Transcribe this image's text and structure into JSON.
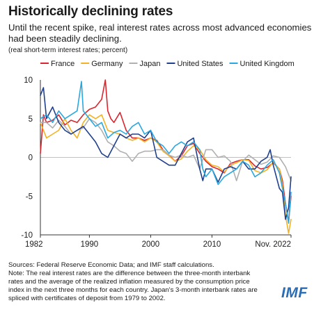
{
  "title": "Historically declining rates",
  "subtitle": "Until the recent spike, real interest rates across most advanced economies had been steadily declining.",
  "units": "(real short-term interest rates; percent)",
  "sources": [
    "Sources: Federal Reserve Economic Data; and IMF staff calculations.",
    "Note: The real interest rates are the difference between the three-month interbank",
    "rates and the average of the realized inflation measured by the consumption price",
    "index in the next three months for each country. Japan's 3-month interbank rates are",
    "spliced with certificates of deposit from 1979 to 2002."
  ],
  "logo": "IMF",
  "chart_data": {
    "type": "line",
    "xlim": [
      1982,
      2022.9
    ],
    "ylim": [
      -10,
      10
    ],
    "x_ticks": [
      {
        "v": 1982,
        "label": "1982"
      },
      {
        "v": 1990,
        "label": "1990"
      },
      {
        "v": 2000,
        "label": "2000"
      },
      {
        "v": 2010,
        "label": "2010"
      },
      {
        "v": 2022.9,
        "label": "Nov. 2022"
      }
    ],
    "y_ticks": [
      10,
      5,
      0,
      -5,
      -10
    ],
    "grid": "horizontal at 0",
    "legend": "top",
    "series": [
      {
        "name": "France",
        "color": "#d9262e",
        "x": [
          1982,
          1982.5,
          1983,
          1984,
          1985,
          1986,
          1987,
          1988,
          1989,
          1990,
          1991,
          1992,
          1992.6,
          1993,
          1993.5,
          1994,
          1995,
          1996,
          1997,
          1998,
          1999,
          2000,
          2001,
          2002,
          2003,
          2004,
          2005,
          2006,
          2007,
          2008,
          2009,
          2010,
          2011,
          2012,
          2013,
          2014,
          2015,
          2016,
          2017,
          2018,
          2019,
          2020,
          2021,
          2021.5,
          2022,
          2022.5,
          2022.9
        ],
        "y": [
          0.5,
          5.5,
          4.5,
          4.8,
          5.5,
          4.2,
          4.8,
          4.5,
          5.5,
          6.2,
          6.5,
          7.5,
          10,
          6,
          5,
          4.5,
          5.8,
          3.5,
          2.5,
          2.5,
          2.2,
          2.5,
          2.2,
          1.0,
          0.3,
          -0.5,
          0.2,
          1.5,
          1.8,
          0.5,
          -0.5,
          -1.2,
          -1.5,
          -2.0,
          -0.8,
          -0.5,
          -0.3,
          -0.3,
          -1.1,
          -1.5,
          -1.3,
          -0.7,
          -1.5,
          -3.0,
          -6.0,
          -8.3,
          -5.0
        ]
      },
      {
        "name": "Germany",
        "color": "#f4b223",
        "x": [
          1982,
          1983,
          1984,
          1985,
          1986,
          1987,
          1988,
          1989,
          1990,
          1991,
          1992,
          1993,
          1994,
          1995,
          1996,
          1997,
          1998,
          1999,
          2000,
          2001,
          2002,
          2003,
          2004,
          2005,
          2006,
          2007,
          2008,
          2009,
          2010,
          2011,
          2012,
          2013,
          2014,
          2015,
          2016,
          2017,
          2018,
          2019,
          2020,
          2021,
          2021.5,
          2022,
          2022.5,
          2022.9
        ],
        "y": [
          4.5,
          2.5,
          3.0,
          3.5,
          5.0,
          3.5,
          2.5,
          4.5,
          5.5,
          5.0,
          5.5,
          3.5,
          3.2,
          3.0,
          2.5,
          2.2,
          2.5,
          2.0,
          2.5,
          2.0,
          0.8,
          0.2,
          -0.5,
          -0.2,
          0.8,
          1.5,
          1.0,
          -0.3,
          -1.0,
          -1.2,
          -1.9,
          -1.0,
          -0.7,
          -0.3,
          -0.4,
          -1.7,
          -2.0,
          -1.6,
          -0.6,
          -1.5,
          -3.5,
          -7.5,
          -9.8,
          -8.0
        ]
      },
      {
        "name": "Japan",
        "color": "#b0b0b0",
        "x": [
          1982,
          1983,
          1984,
          1985,
          1986,
          1987,
          1988,
          1989,
          1990,
          1991,
          1992,
          1993,
          1994,
          1995,
          1996,
          1997,
          1998,
          1999,
          2000,
          2001,
          2002,
          2003,
          2004,
          2005,
          2006,
          2007,
          2008,
          2009,
          2010,
          2011,
          2012,
          2013,
          2014,
          2015,
          2016,
          2017,
          2018,
          2019,
          2020,
          2021,
          2022,
          2022.9
        ],
        "y": [
          4.5,
          4.5,
          3.8,
          4.8,
          4.0,
          3.0,
          3.5,
          3.8,
          5.0,
          4.5,
          3.5,
          2.0,
          1.5,
          0.8,
          0.5,
          -0.5,
          0.5,
          0.8,
          0.8,
          1.0,
          1.0,
          0.3,
          0.0,
          0.3,
          0.0,
          0.3,
          -1.5,
          1.0,
          1.0,
          0.0,
          0.2,
          -0.5,
          -3.0,
          -0.5,
          0.3,
          -0.3,
          -0.9,
          -0.6,
          0.2,
          0.0,
          -1.2,
          -3.0
        ]
      },
      {
        "name": "United States",
        "color": "#1f3f8c",
        "x": [
          1982,
          1982.5,
          1983,
          1984,
          1985,
          1986,
          1987,
          1988,
          1989,
          1990,
          1991,
          1992,
          1993,
          1994,
          1995,
          1996,
          1997,
          1998,
          1999,
          2000,
          2001,
          2002,
          2003,
          2004,
          2005,
          2006,
          2007,
          2008,
          2008.5,
          2009,
          2010,
          2011,
          2012,
          2013,
          2014,
          2015,
          2016,
          2017,
          2018,
          2019,
          2019.5,
          2020,
          2021,
          2021.5,
          2022,
          2022.5,
          2022.9
        ],
        "y": [
          8,
          9,
          5.0,
          6.5,
          4.5,
          3.5,
          3.0,
          3.5,
          4.0,
          3.0,
          2.0,
          0.5,
          0.0,
          1.5,
          3.0,
          2.5,
          3.0,
          3.0,
          2.5,
          3.5,
          0.0,
          -0.5,
          -1.0,
          -1.0,
          0.5,
          2.0,
          2.5,
          -1.5,
          -3.0,
          -1.5,
          -1.5,
          -3.2,
          -1.5,
          -1.2,
          -1.5,
          -0.5,
          -1.5,
          -1.5,
          -0.5,
          0.0,
          1.0,
          -1.0,
          -4.0,
          -4.5,
          -8.0,
          -6.5,
          -2.5
        ]
      },
      {
        "name": "United Kingdom",
        "color": "#29a8e0",
        "x": [
          1982,
          1983,
          1984,
          1985,
          1986,
          1987,
          1988,
          1988.7,
          1989,
          1990,
          1991,
          1992,
          1993,
          1994,
          1995,
          1996,
          1997,
          1998,
          1999,
          2000,
          2001,
          2002,
          2003,
          2004,
          2005,
          2006,
          2007,
          2008,
          2008.5,
          2009,
          2010,
          2011,
          2012,
          2013,
          2014,
          2015,
          2016,
          2017,
          2018,
          2019,
          2020,
          2021,
          2021.5,
          2022,
          2022.5,
          2022.9
        ],
        "y": [
          5.0,
          5.5,
          4.5,
          6.0,
          5.0,
          5.5,
          6.0,
          9.8,
          6.0,
          5.0,
          4.0,
          4.5,
          2.5,
          3.2,
          3.5,
          3.0,
          4.0,
          4.5,
          3.0,
          3.5,
          2.0,
          1.5,
          0.5,
          1.5,
          2.0,
          1.5,
          2.0,
          1.0,
          -1.5,
          -2.5,
          -1.5,
          -3.5,
          -2.5,
          -2.0,
          -1.5,
          -0.5,
          -1.0,
          -2.5,
          -2.0,
          -1.0,
          -0.3,
          -2.0,
          -4.0,
          -6.0,
          -8.5,
          -4.5
        ]
      }
    ]
  }
}
